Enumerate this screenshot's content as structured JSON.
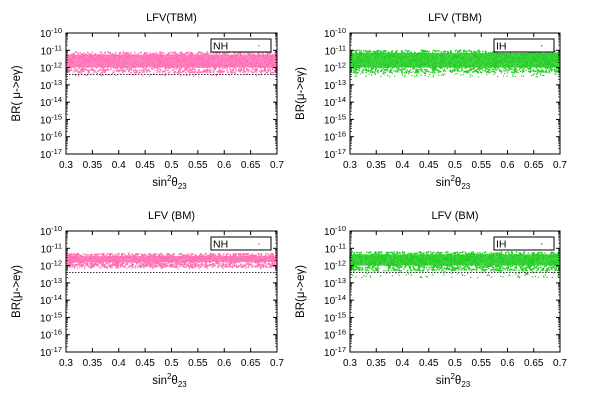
{
  "chart_data": [
    {
      "type": "scatter",
      "title": "LFV(TBM)",
      "xlabel": "sin²θ₂₃",
      "ylabel": "BR( μ->eγ)",
      "xlim": [
        0.3,
        0.7
      ],
      "ylim_log10": [
        -17,
        -10
      ],
      "yscale": "log",
      "x_ticks": [
        "0.3",
        "0.35",
        "0.4",
        "0.45",
        "0.5",
        "0.55",
        "0.6",
        "0.65",
        "0.7"
      ],
      "legend": {
        "label": "NH",
        "position": "top-right"
      },
      "color": "#ff6eb4",
      "series": [
        {
          "name": "NH",
          "x_range": [
            0.3,
            0.7
          ],
          "log10_br_dense_band": [
            -12.3,
            -11.1
          ],
          "log10_br_sparse_min": -12.5
        }
      ],
      "reference_line_log10": -12.4
    },
    {
      "type": "scatter",
      "title": "LFV (TBM)",
      "xlabel": "sin²θ₂₃",
      "ylabel": "BR(μ->eγ)",
      "xlim": [
        0.3,
        0.7
      ],
      "ylim_log10": [
        -17,
        -10
      ],
      "yscale": "log",
      "x_ticks": [
        "0.3",
        "0.35",
        "0.4",
        "0.45",
        "0.5",
        "0.55",
        "0.6",
        "0.65",
        "0.7"
      ],
      "legend": {
        "label": "IH",
        "position": "top-right"
      },
      "color": "#22cc22",
      "series": [
        {
          "name": "IH",
          "x_range": [
            0.3,
            0.7
          ],
          "log10_br_dense_band": [
            -12.3,
            -11.0
          ],
          "log10_br_sparse_min": -12.55
        }
      ],
      "reference_line_log10": null
    },
    {
      "type": "scatter",
      "title": "LFV (BM)",
      "xlabel": "sin²θ₂₃",
      "ylabel": "BR(μ->eγ)",
      "xlim": [
        0.3,
        0.7
      ],
      "ylim_log10": [
        -17,
        -10
      ],
      "yscale": "log",
      "x_ticks": [
        "0.3",
        "0.35",
        "0.4",
        "0.45",
        "0.5",
        "0.55",
        "0.6",
        "0.65",
        "0.7"
      ],
      "legend": {
        "label": "NH",
        "position": "top-right"
      },
      "color": "#ff6eb4",
      "series": [
        {
          "name": "NH",
          "x_range": [
            0.3,
            0.7
          ],
          "log10_br_dense_band": [
            -12.1,
            -11.3
          ],
          "log10_br_sparse_min": -12.2
        }
      ],
      "reference_line_log10": -12.4
    },
    {
      "type": "scatter",
      "title": "LFV (BM)",
      "xlabel": "sin²θ₂₃",
      "ylabel": "BR(μ->eγ)",
      "xlim": [
        0.3,
        0.7
      ],
      "ylim_log10": [
        -17,
        -10
      ],
      "yscale": "log",
      "x_ticks": [
        "0.3",
        "0.35",
        "0.4",
        "0.45",
        "0.5",
        "0.55",
        "0.6",
        "0.65",
        "0.7"
      ],
      "legend": {
        "label": "IH",
        "position": "top-right"
      },
      "color": "#22cc22",
      "series": [
        {
          "name": "IH",
          "x_range": [
            0.3,
            0.7
          ],
          "log10_br_dense_band": [
            -12.3,
            -11.2
          ],
          "log10_br_sparse_min": -12.7
        }
      ],
      "reference_line_log10": -12.4
    }
  ]
}
